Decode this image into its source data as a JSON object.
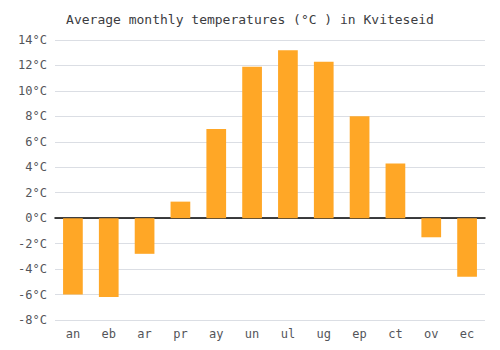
{
  "chart_data": {
    "type": "bar",
    "title": "Average monthly temperatures (°C ) in Kviteseid",
    "categories": [
      "an",
      "eb",
      "ar",
      "pr",
      "ay",
      "un",
      "ul",
      "ug",
      "ep",
      "ct",
      "ov",
      "ec"
    ],
    "values": [
      -6.0,
      -6.2,
      -2.8,
      1.3,
      7.0,
      11.9,
      13.2,
      12.3,
      8.0,
      4.3,
      -1.5,
      -4.6
    ],
    "color": "#FFA726",
    "ylim": [
      -8,
      14
    ],
    "yticks": [
      {
        "value": -8,
        "label": "-8°C"
      },
      {
        "value": -6,
        "label": "-6°C"
      },
      {
        "value": -4,
        "label": "-4°C"
      },
      {
        "value": -2,
        "label": "-2°C"
      },
      {
        "value": 0,
        "label": "0°C"
      },
      {
        "value": 2,
        "label": "2°C"
      },
      {
        "value": 4,
        "label": "4°C"
      },
      {
        "value": 6,
        "label": "6°C"
      },
      {
        "value": 8,
        "label": "8°C"
      },
      {
        "value": 10,
        "label": "10°C"
      },
      {
        "value": 12,
        "label": "12°C"
      },
      {
        "value": 14,
        "label": "14°C"
      }
    ],
    "grid": true
  }
}
